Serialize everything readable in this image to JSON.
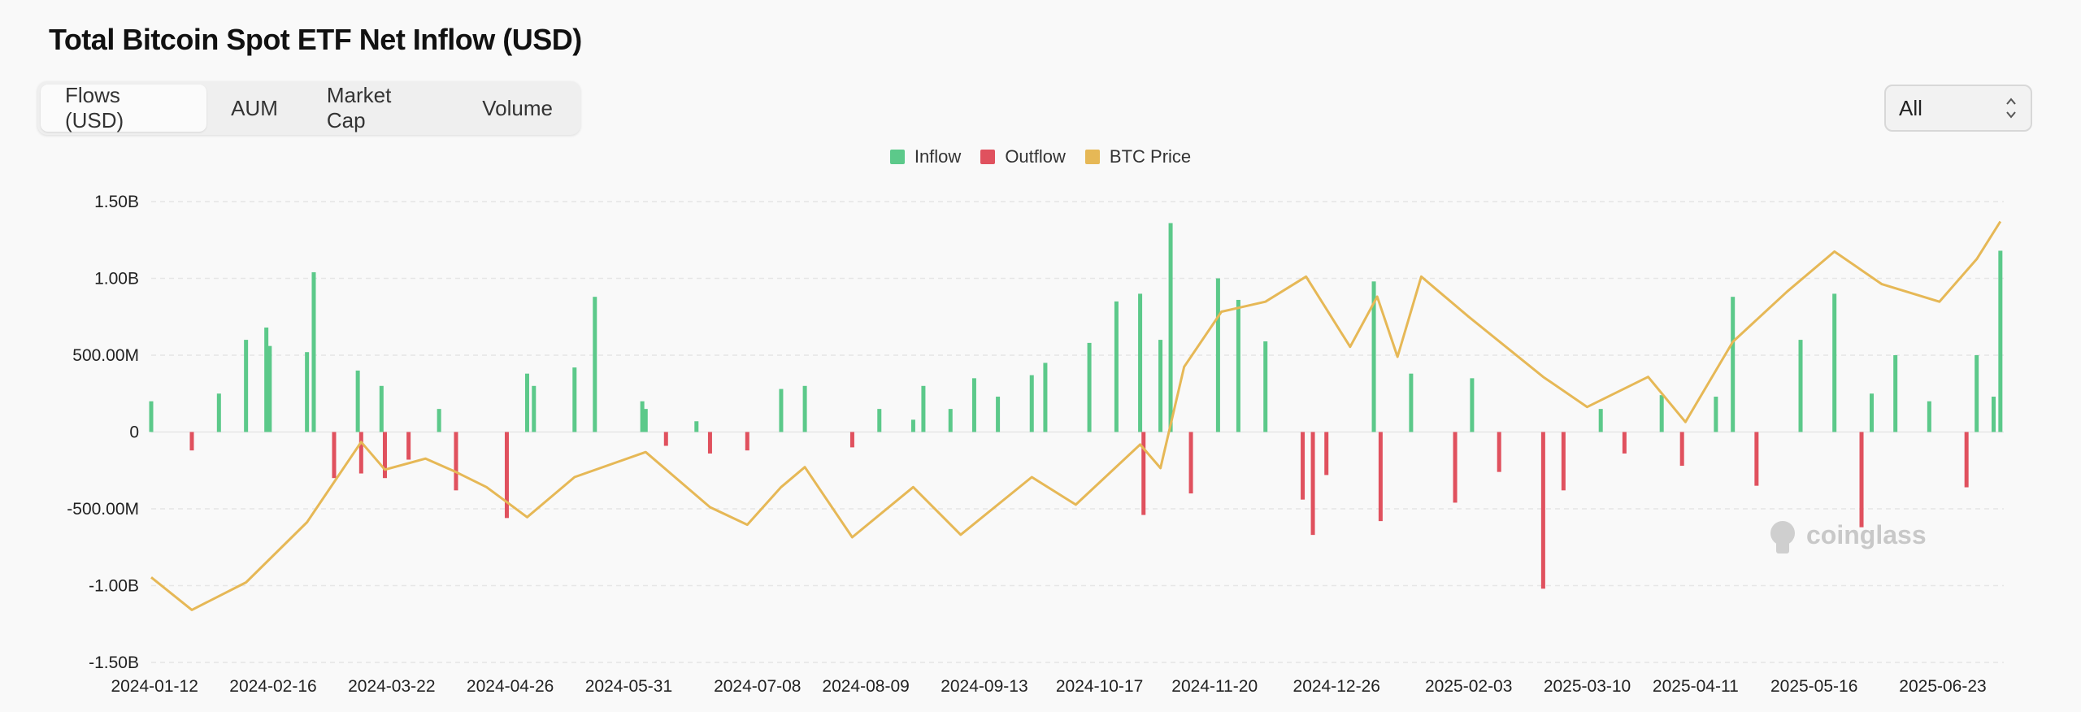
{
  "title": "Total Bitcoin Spot ETF Net Inflow (USD)",
  "tabs": [
    {
      "label": "Flows (USD)",
      "active": true
    },
    {
      "label": "AUM",
      "active": false
    },
    {
      "label": "Market Cap",
      "active": false
    },
    {
      "label": "Volume",
      "active": false
    }
  ],
  "range_select": {
    "value": "All"
  },
  "watermark": "coinglass",
  "colors": {
    "inflow": "#5cc98a",
    "outflow": "#e0515e",
    "price": "#e6b856"
  },
  "chart_data": {
    "type": "bar",
    "title": "Total Bitcoin Spot ETF Net Inflow (USD)",
    "legend": [
      "Inflow",
      "Outflow",
      "BTC Price"
    ],
    "y_ticks": [
      "1.50B",
      "1.00B",
      "500.00M",
      "0",
      "-500.00M",
      "-1.00B",
      "-1.50B"
    ],
    "ylim": [
      -1500000000,
      1500000000
    ],
    "x_ticks": [
      "2024-01-12",
      "2024-02-16",
      "2024-03-22",
      "2024-04-26",
      "2024-05-31",
      "2024-07-08",
      "2024-08-09",
      "2024-09-13",
      "2024-10-17",
      "2024-11-20",
      "2024-12-26",
      "2025-02-03",
      "2025-03-10",
      "2025-04-11",
      "2025-05-16",
      "2025-06-23"
    ],
    "x_range": [
      "2024-01-11",
      "2025-07-11"
    ],
    "series": [
      {
        "name": "Net Inflow (USD, M)",
        "x": [
          "2024-01-11",
          "2024-01-23",
          "2024-01-31",
          "2024-02-08",
          "2024-02-14",
          "2024-02-15",
          "2024-02-26",
          "2024-02-28",
          "2024-03-05",
          "2024-03-12",
          "2024-03-13",
          "2024-03-19",
          "2024-03-20",
          "2024-03-27",
          "2024-04-05",
          "2024-04-10",
          "2024-04-25",
          "2024-05-01",
          "2024-05-03",
          "2024-05-15",
          "2024-05-21",
          "2024-06-04",
          "2024-06-05",
          "2024-06-11",
          "2024-06-20",
          "2024-06-24",
          "2024-07-05",
          "2024-07-15",
          "2024-07-22",
          "2024-08-05",
          "2024-08-13",
          "2024-08-23",
          "2024-08-26",
          "2024-09-03",
          "2024-09-10",
          "2024-09-17",
          "2024-09-27",
          "2024-10-01",
          "2024-10-14",
          "2024-10-22",
          "2024-10-29",
          "2024-10-30",
          "2024-11-04",
          "2024-11-07",
          "2024-11-13",
          "2024-11-21",
          "2024-11-27",
          "2024-12-05",
          "2024-12-16",
          "2024-12-19",
          "2024-12-23",
          "2025-01-06",
          "2025-01-08",
          "2025-01-17",
          "2025-01-30",
          "2025-02-04",
          "2025-02-12",
          "2025-02-25",
          "2025-03-03",
          "2025-03-14",
          "2025-03-21",
          "2025-04-01",
          "2025-04-07",
          "2025-04-17",
          "2025-04-22",
          "2025-04-29",
          "2025-05-12",
          "2025-05-22",
          "2025-05-30",
          "2025-06-02",
          "2025-06-09",
          "2025-06-19",
          "2025-06-30",
          "2025-07-03",
          "2025-07-08",
          "2025-07-10"
        ],
        "values": [
          200,
          -120,
          250,
          600,
          680,
          560,
          520,
          1040,
          -300,
          400,
          -270,
          300,
          -300,
          -180,
          150,
          -380,
          -560,
          380,
          300,
          420,
          880,
          200,
          150,
          -90,
          70,
          -140,
          -120,
          280,
          300,
          -100,
          150,
          80,
          300,
          150,
          350,
          230,
          370,
          450,
          580,
          850,
          900,
          -540,
          600,
          1360,
          -400,
          1000,
          860,
          590,
          -440,
          -670,
          -280,
          980,
          -580,
          380,
          -460,
          350,
          -260,
          -1020,
          -380,
          150,
          -140,
          240,
          -220,
          230,
          880,
          -350,
          600,
          900,
          -620,
          250,
          500,
          200,
          -360,
          500,
          230,
          1180
        ]
      },
      {
        "name": "BTC Price (USD)",
        "x": [
          "2024-01-11",
          "2024-01-23",
          "2024-02-08",
          "2024-02-26",
          "2024-03-13",
          "2024-03-20",
          "2024-04-01",
          "2024-04-10",
          "2024-04-19",
          "2024-05-01",
          "2024-05-15",
          "2024-06-05",
          "2024-06-24",
          "2024-07-05",
          "2024-07-15",
          "2024-07-22",
          "2024-08-05",
          "2024-08-23",
          "2024-09-06",
          "2024-09-27",
          "2024-10-10",
          "2024-10-29",
          "2024-11-04",
          "2024-11-11",
          "2024-11-22",
          "2024-12-05",
          "2024-12-17",
          "2024-12-30",
          "2025-01-07",
          "2025-01-13",
          "2025-01-20",
          "2025-02-03",
          "2025-02-25",
          "2025-03-10",
          "2025-03-28",
          "2025-04-08",
          "2025-04-22",
          "2025-05-08",
          "2025-05-22",
          "2025-06-05",
          "2025-06-22",
          "2025-07-03",
          "2025-07-10"
        ],
        "values": [
          46000,
          39500,
          45000,
          57000,
          73000,
          67500,
          69700,
          67000,
          64000,
          58000,
          66000,
          71000,
          60000,
          56500,
          64000,
          68000,
          54000,
          64000,
          54500,
          66000,
          60500,
          72500,
          67800,
          88000,
          99000,
          101000,
          106000,
          92000,
          102000,
          90000,
          106000,
          98000,
          86000,
          80000,
          86000,
          77000,
          93000,
          103000,
          111000,
          104500,
          101000,
          109500,
          117000
        ]
      }
    ]
  }
}
